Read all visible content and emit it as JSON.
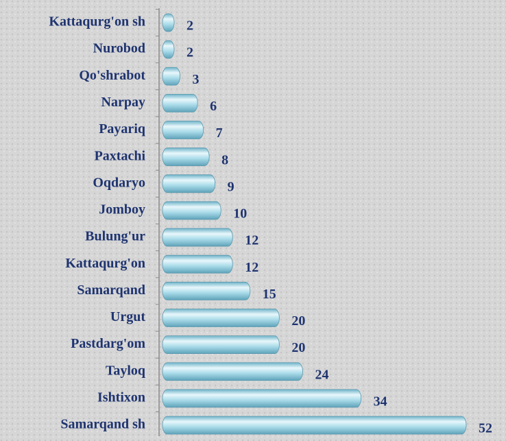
{
  "chart_data": {
    "type": "bar",
    "orientation": "horizontal",
    "categories": [
      "Kattaqurg'on sh",
      "Nurobod",
      "Qo'shrabot",
      "Narpay",
      "Payariq",
      "Paxtachi",
      "Oqdaryo",
      "Jomboy",
      "Bulung'ur",
      "Kattaqurg'on",
      "Samarqand",
      "Urgut",
      "Pastdarg'om",
      "Tayloq",
      "Ishtixon",
      "Samarqand sh"
    ],
    "values": [
      2,
      2,
      3,
      6,
      7,
      8,
      9,
      10,
      12,
      12,
      15,
      20,
      20,
      24,
      34,
      52
    ],
    "color": "#9fd3e3"
  }
}
